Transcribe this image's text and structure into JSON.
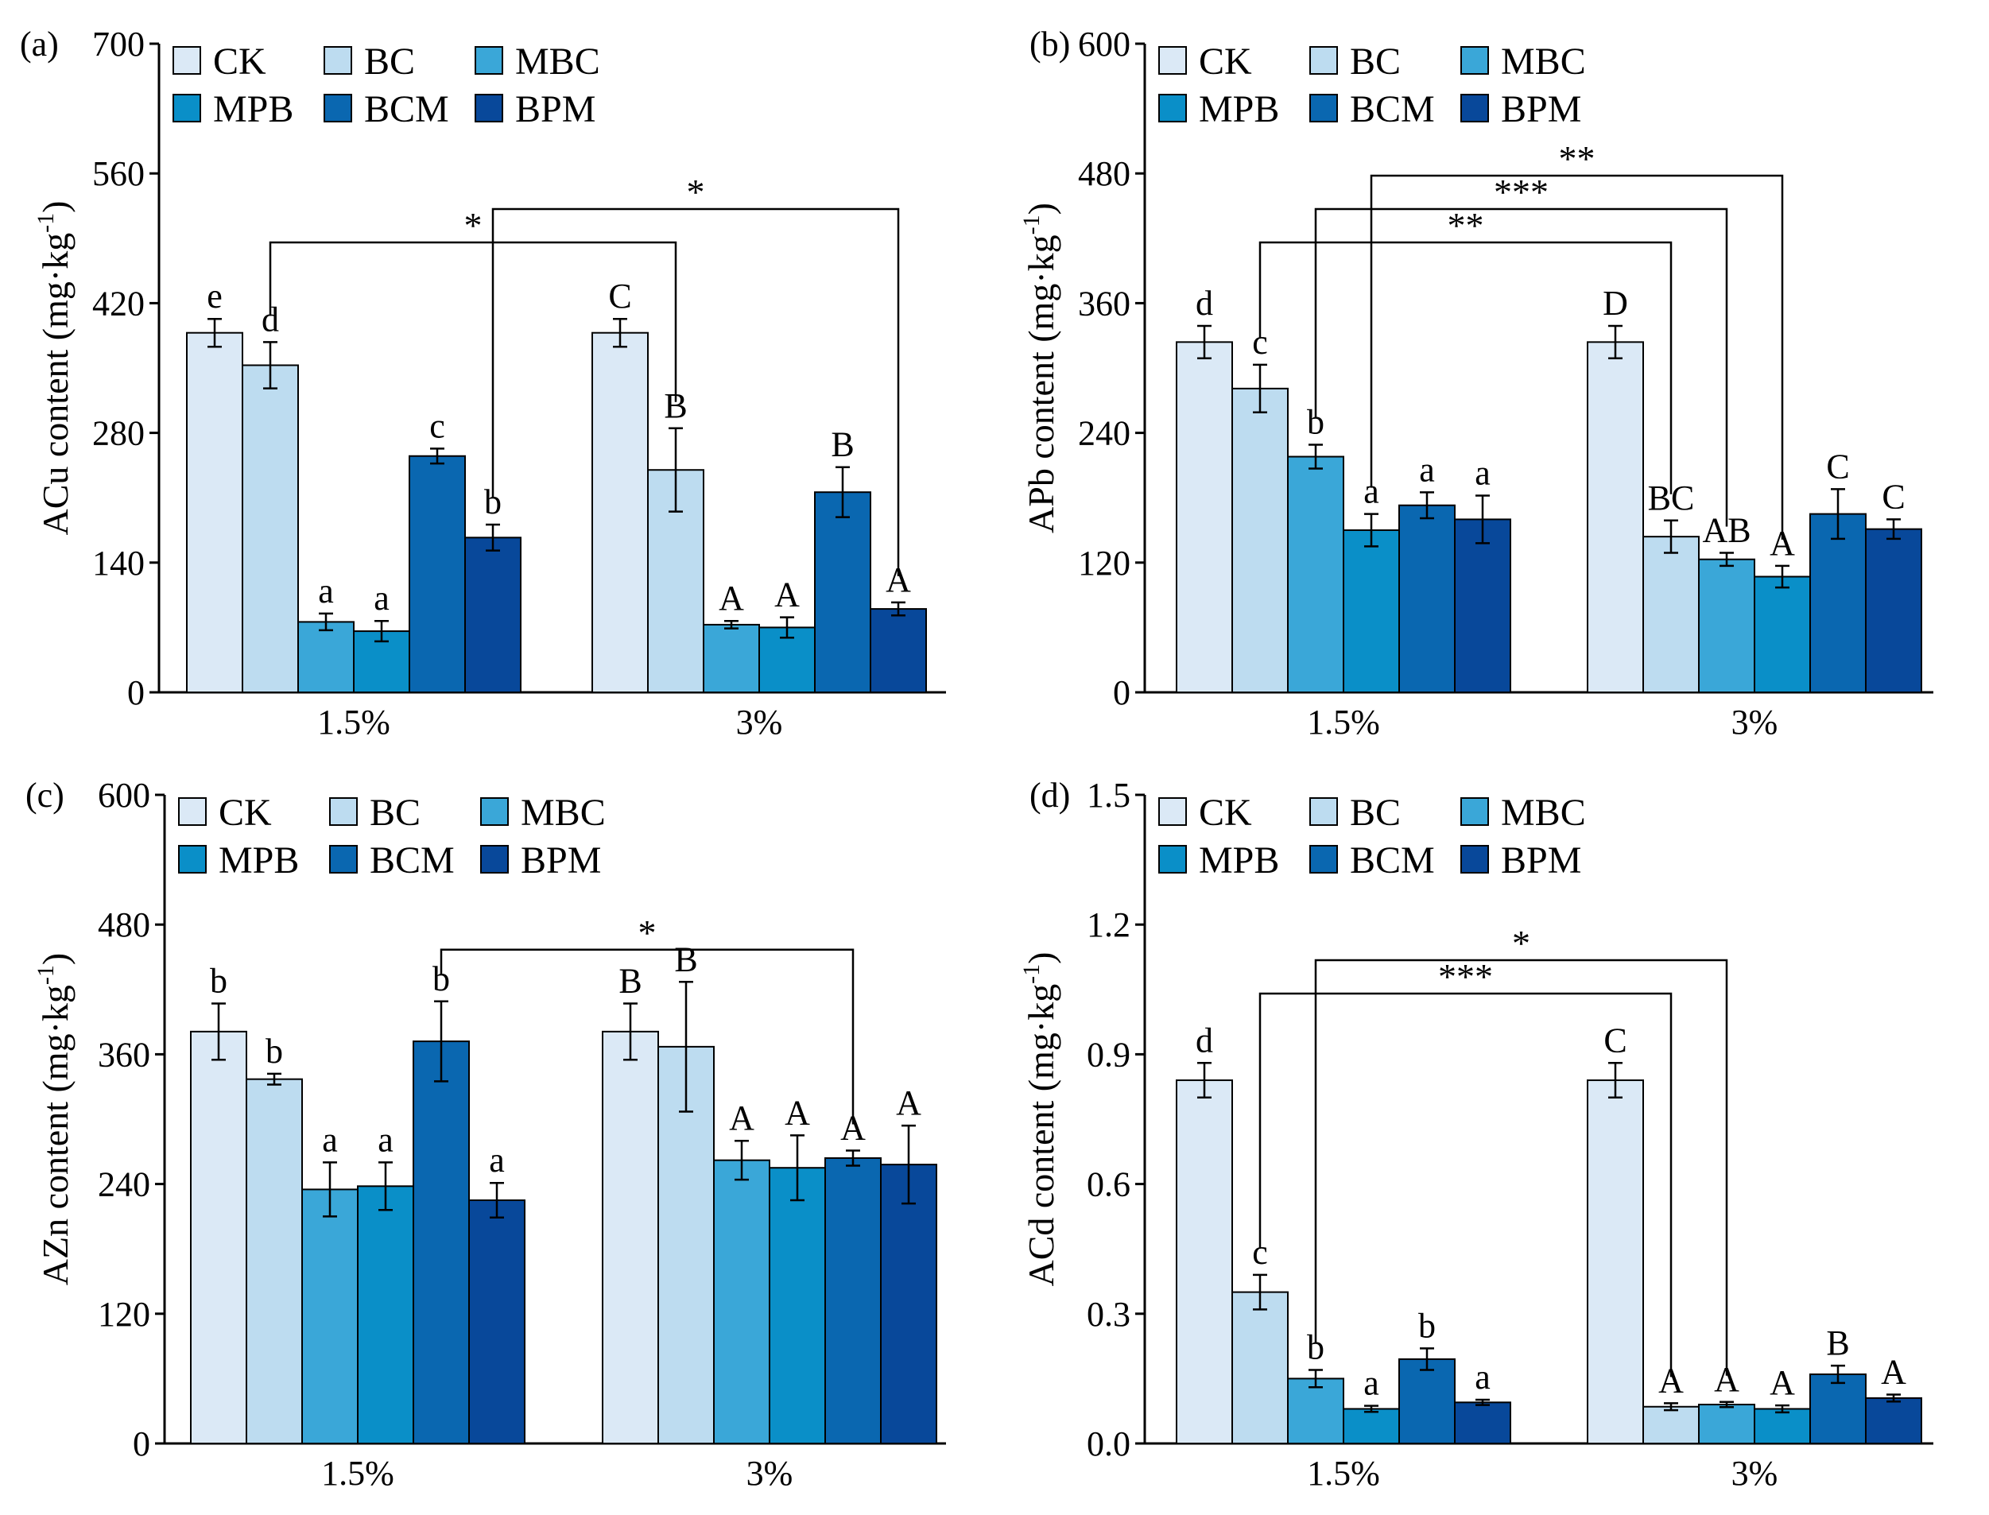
{
  "chart_data": [
    {
      "type": "bar",
      "panel_label": "(a)",
      "ylabel_main": "ACu content (mg·kg",
      "ylabel_sup": "-1",
      "ylabel_close": ")",
      "ylim": [
        0,
        700
      ],
      "yticks": [
        "0",
        "140",
        "280",
        "420",
        "560",
        "700"
      ],
      "categories": [
        "1.5%",
        "3%"
      ],
      "series": [
        {
          "name": "CK",
          "values": [
            388,
            388
          ],
          "errors": [
            15,
            15
          ],
          "letters": [
            "e",
            "C"
          ]
        },
        {
          "name": "BC",
          "values": [
            353,
            240
          ],
          "errors": [
            25,
            45
          ],
          "letters": [
            "d",
            "B"
          ]
        },
        {
          "name": "MBC",
          "values": [
            76,
            73
          ],
          "errors": [
            9,
            4
          ],
          "letters": [
            "a",
            "A"
          ]
        },
        {
          "name": "MPB",
          "values": [
            66,
            70
          ],
          "errors": [
            11,
            11
          ],
          "letters": [
            "a",
            "A"
          ]
        },
        {
          "name": "BCM",
          "values": [
            255,
            216
          ],
          "errors": [
            8,
            27
          ],
          "letters": [
            "c",
            "B"
          ]
        },
        {
          "name": "BPM",
          "values": [
            167,
            90
          ],
          "errors": [
            14,
            7
          ],
          "letters": [
            "b",
            "A"
          ]
        }
      ],
      "significance": [
        {
          "from": [
            0,
            1
          ],
          "to": [
            1,
            1
          ],
          "label": "*"
        },
        {
          "from": [
            0,
            5
          ],
          "to": [
            1,
            5
          ],
          "label": "*"
        }
      ]
    },
    {
      "type": "bar",
      "panel_label": "(b)",
      "ylabel_main": "APb content (mg·kg",
      "ylabel_sup": "-1",
      "ylabel_close": ")",
      "ylim": [
        0,
        600
      ],
      "yticks": [
        "0",
        "120",
        "240",
        "360",
        "480",
        "600"
      ],
      "categories": [
        "1.5%",
        "3%"
      ],
      "series": [
        {
          "name": "CK",
          "values": [
            324,
            324
          ],
          "errors": [
            15,
            15
          ],
          "letters": [
            "d",
            "D"
          ]
        },
        {
          "name": "BC",
          "values": [
            281,
            144
          ],
          "errors": [
            22,
            15
          ],
          "letters": [
            "c",
            "BC"
          ]
        },
        {
          "name": "MBC",
          "values": [
            218,
            123
          ],
          "errors": [
            11,
            6
          ],
          "letters": [
            "b",
            "AB"
          ]
        },
        {
          "name": "MPB",
          "values": [
            150,
            107
          ],
          "errors": [
            15,
            10
          ],
          "letters": [
            "a",
            "A"
          ]
        },
        {
          "name": "BCM",
          "values": [
            173,
            165
          ],
          "errors": [
            12,
            23
          ],
          "letters": [
            "a",
            "C"
          ]
        },
        {
          "name": "BPM",
          "values": [
            160,
            151
          ],
          "errors": [
            22,
            9
          ],
          "letters": [
            "a",
            "C"
          ]
        }
      ],
      "significance": [
        {
          "from": [
            0,
            1
          ],
          "to": [
            1,
            1
          ],
          "label": "**"
        },
        {
          "from": [
            0,
            2
          ],
          "to": [
            1,
            2
          ],
          "label": "***"
        },
        {
          "from": [
            0,
            3
          ],
          "to": [
            1,
            3
          ],
          "label": "**"
        }
      ]
    },
    {
      "type": "bar",
      "panel_label": "(c)",
      "ylabel_main": "AZn content (mg·kg",
      "ylabel_sup": "-1",
      "ylabel_close": ")",
      "ylim": [
        0,
        600
      ],
      "yticks": [
        "0",
        "120",
        "240",
        "360",
        "480",
        "600"
      ],
      "categories": [
        "1.5%",
        "3%"
      ],
      "series": [
        {
          "name": "CK",
          "values": [
            381,
            381
          ],
          "errors": [
            26,
            26
          ],
          "letters": [
            "b",
            "B"
          ]
        },
        {
          "name": "BC",
          "values": [
            337,
            367
          ],
          "errors": [
            5,
            60
          ],
          "letters": [
            "b",
            "B"
          ]
        },
        {
          "name": "MBC",
          "values": [
            235,
            262
          ],
          "errors": [
            25,
            18
          ],
          "letters": [
            "a",
            "A"
          ]
        },
        {
          "name": "MPB",
          "values": [
            238,
            255
          ],
          "errors": [
            22,
            30
          ],
          "letters": [
            "a",
            "A"
          ]
        },
        {
          "name": "BCM",
          "values": [
            372,
            264
          ],
          "errors": [
            37,
            7
          ],
          "letters": [
            "b",
            "A"
          ]
        },
        {
          "name": "BPM",
          "values": [
            225,
            258
          ],
          "errors": [
            16,
            36
          ],
          "letters": [
            "a",
            "A"
          ]
        }
      ],
      "significance": [
        {
          "from": [
            0,
            4
          ],
          "to": [
            1,
            4
          ],
          "label": "*"
        }
      ]
    },
    {
      "type": "bar",
      "panel_label": "(d)",
      "ylabel_main": "ACd content (mg·kg",
      "ylabel_sup": "-1",
      "ylabel_close": ")",
      "ylim": [
        0,
        1.5
      ],
      "yticks": [
        "0.0",
        "0.3",
        "0.6",
        "0.9",
        "1.2",
        "1.5"
      ],
      "categories": [
        "1.5%",
        "3%"
      ],
      "series": [
        {
          "name": "CK",
          "values": [
            0.84,
            0.84
          ],
          "errors": [
            0.04,
            0.04
          ],
          "letters": [
            "d",
            "C"
          ]
        },
        {
          "name": "BC",
          "values": [
            0.35,
            0.085
          ],
          "errors": [
            0.04,
            0.008
          ],
          "letters": [
            "c",
            "A"
          ]
        },
        {
          "name": "MBC",
          "values": [
            0.15,
            0.09
          ],
          "errors": [
            0.02,
            0.006
          ],
          "letters": [
            "b",
            "A"
          ]
        },
        {
          "name": "MPB",
          "values": [
            0.08,
            0.08
          ],
          "errors": [
            0.007,
            0.008
          ],
          "letters": [
            "a",
            "A"
          ]
        },
        {
          "name": "BCM",
          "values": [
            0.195,
            0.16
          ],
          "errors": [
            0.025,
            0.02
          ],
          "letters": [
            "b",
            "B"
          ]
        },
        {
          "name": "BPM",
          "values": [
            0.095,
            0.105
          ],
          "errors": [
            0.006,
            0.008
          ],
          "letters": [
            "a",
            "A"
          ]
        }
      ],
      "significance": [
        {
          "from": [
            0,
            1
          ],
          "to": [
            1,
            1
          ],
          "label": "***"
        },
        {
          "from": [
            0,
            2
          ],
          "to": [
            1,
            2
          ],
          "label": "*"
        }
      ]
    }
  ],
  "legend": [
    "CK",
    "BC",
    "MBC",
    "MPB",
    "BCM",
    "BPM"
  ],
  "colors": [
    "#dbe9f6",
    "#bddcf0",
    "#3aa7d8",
    "#0a8fc8",
    "#0a67b0",
    "#08489a"
  ]
}
